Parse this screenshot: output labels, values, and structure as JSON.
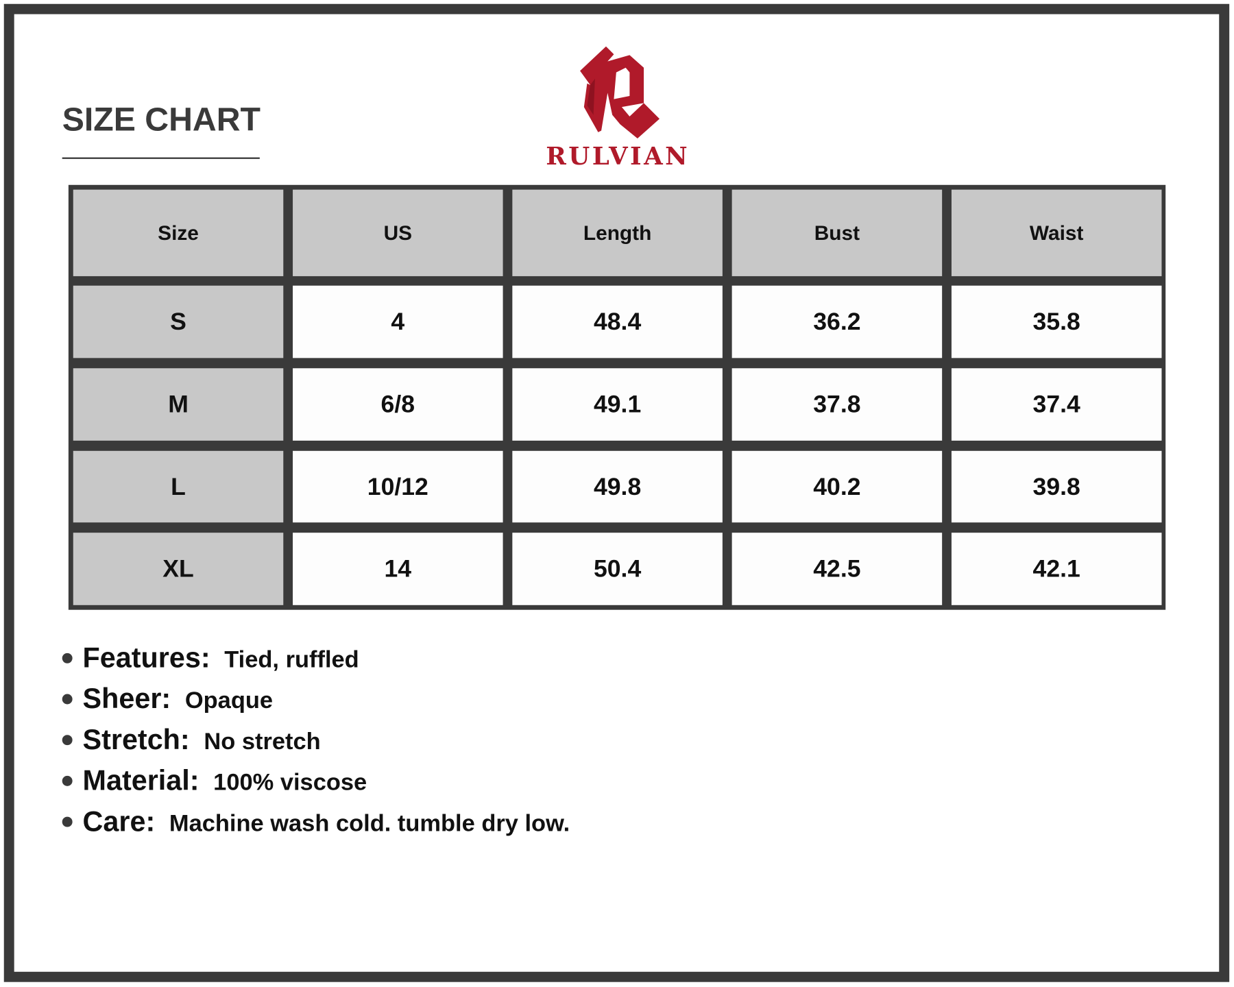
{
  "title": "SIZE CHART",
  "brand": {
    "name": "RULVIAN",
    "color": "#b01a2a"
  },
  "table": {
    "headers": [
      "Size",
      "US",
      "Length",
      "Bust",
      "Waist"
    ],
    "rows": [
      [
        "S",
        "4",
        "48.4",
        "36.2",
        "35.8"
      ],
      [
        "M",
        "6/8",
        "49.1",
        "37.8",
        "37.4"
      ],
      [
        "L",
        "10/12",
        "49.8",
        "40.2",
        "39.8"
      ],
      [
        "XL",
        "14",
        "50.4",
        "42.5",
        "42.1"
      ]
    ]
  },
  "features": [
    {
      "label": "Features:",
      "value": "Tied, ruffled"
    },
    {
      "label": "Sheer:",
      "value": "Opaque"
    },
    {
      "label": "Stretch:",
      "value": "No stretch"
    },
    {
      "label": "Material:",
      "value": "100% viscose"
    },
    {
      "label": "Care:",
      "value": "Machine wash cold. tumble dry low."
    }
  ]
}
